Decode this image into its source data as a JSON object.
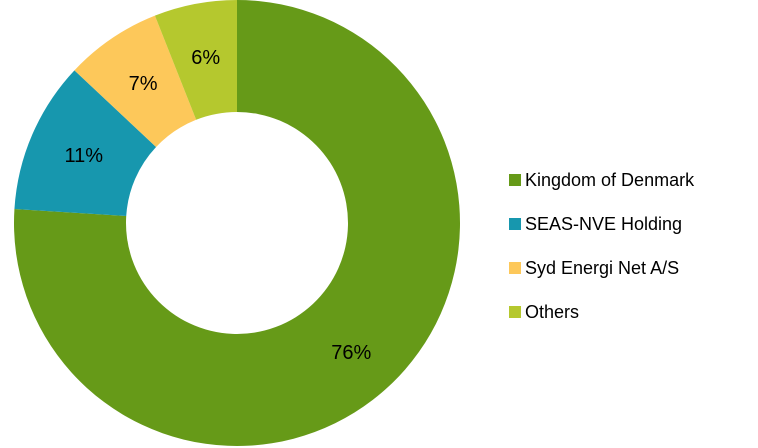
{
  "chart_data": {
    "type": "pie",
    "variant": "donut",
    "title": "",
    "categories": [
      "Kingdom of Denmark",
      "SEAS-NVE Holding",
      "Syd Energi Net A/S",
      "Others"
    ],
    "values": [
      76,
      11,
      7,
      6
    ],
    "labels": [
      "76%",
      "11%",
      "7%",
      "6%"
    ],
    "colors": [
      "#669A18",
      "#1797AE",
      "#FDC85A",
      "#B5C82E"
    ],
    "legend_position": "right"
  }
}
